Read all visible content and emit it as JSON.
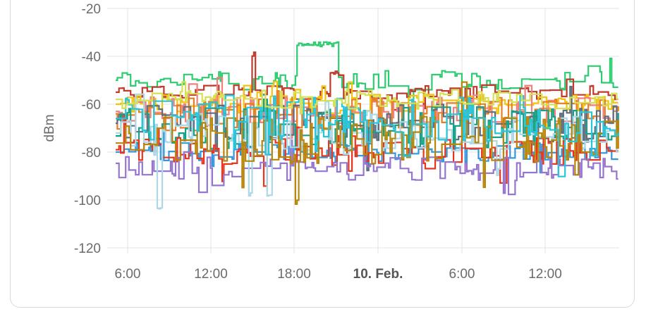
{
  "chart_data": {
    "type": "line",
    "ylabel": "dBm",
    "xlabel": "",
    "title": "",
    "ylim": [
      -120,
      -20
    ],
    "y_ticks": [
      "-20",
      "-40",
      "-60",
      "-80",
      "-100",
      "-120"
    ],
    "x_ticks": [
      {
        "label": "6:00",
        "bold": false
      },
      {
        "label": "12:00",
        "bold": false
      },
      {
        "label": "18:00",
        "bold": false
      },
      {
        "label": "10. Feb.",
        "bold": true
      },
      {
        "label": "6:00",
        "bold": false
      },
      {
        "label": "12:00",
        "bold": false
      }
    ],
    "grid": true,
    "series": [
      {
        "color": "#2ecc71",
        "base": -50,
        "noise": 4,
        "drops": [
          [
            13.0,
            -35,
            3
          ]
        ]
      },
      {
        "color": "#c0392b",
        "base": -55,
        "noise": 3,
        "drops": [
          [
            9.8,
            -39,
            0.2
          ],
          [
            15.4,
            -47,
            1
          ]
        ]
      },
      {
        "color": "#f1c40f",
        "base": -60,
        "noise": 4,
        "drops": []
      },
      {
        "color": "#f08080",
        "base": -63,
        "noise": 6,
        "drops": []
      },
      {
        "color": "#e67e22",
        "base": -64,
        "noise": 7,
        "drops": []
      },
      {
        "color": "#5d6d7e",
        "base": -68,
        "noise": 8,
        "drops": []
      },
      {
        "color": "#16a085",
        "base": -70,
        "noise": 9,
        "drops": []
      },
      {
        "color": "#3498db",
        "base": -80,
        "noise": 4,
        "drops": []
      },
      {
        "color": "#e8341a",
        "base": -79,
        "noise": 6,
        "drops": []
      },
      {
        "color": "#9575cd",
        "base": -87,
        "noise": 5,
        "drops": []
      },
      {
        "color": "#add8e6",
        "base": -72,
        "noise": 8,
        "drops": [
          [
            3.0,
            -103,
            0.3
          ],
          [
            9.5,
            -98,
            0.3
          ],
          [
            10.9,
            -98,
            0.3
          ]
        ]
      },
      {
        "color": "#b8860b",
        "base": -75,
        "noise": 10,
        "drops": [
          [
            12.9,
            -101,
            0.2
          ]
        ]
      },
      {
        "color": "#26c6da",
        "base": -66,
        "noise": 10,
        "drops": []
      },
      {
        "color": "#d4e157",
        "base": -58,
        "noise": 4,
        "drops": []
      }
    ]
  }
}
